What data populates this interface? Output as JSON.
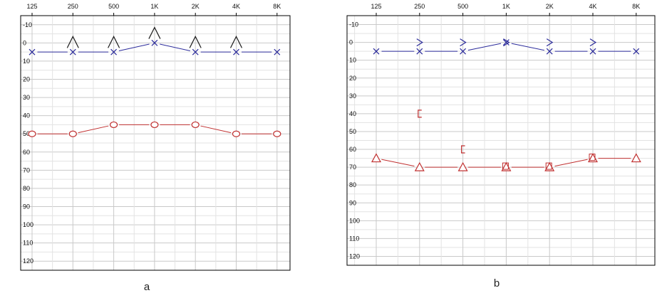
{
  "captions": {
    "a": "a",
    "b": "b"
  },
  "colors": {
    "air": "#2b2b9b",
    "bone_left": "#1a1a1a",
    "bone_right": "#c03030",
    "line_right": "#c03030",
    "grid_minor": "#e3e3e3",
    "grid_major": "#c9c9c9",
    "frame": "#000000"
  },
  "chart_data": [
    {
      "type": "line",
      "panel": "a",
      "title": "",
      "xlabel": "",
      "ylabel": "",
      "x_tick_labels": [
        "125",
        "250",
        "500",
        "1K",
        "2K",
        "4K",
        "8K"
      ],
      "y_tick_labels": [
        "-10",
        "0",
        "10",
        "20",
        "30",
        "40",
        "50",
        "60",
        "70",
        "80",
        "90",
        "100",
        "110",
        "120"
      ],
      "ylim": [
        -15,
        125
      ],
      "y_inverted": true,
      "grid": true,
      "series": [
        {
          "symbol": "x",
          "color": "#2b2b9b",
          "connected": true,
          "values": [
            5,
            5,
            5,
            0,
            5,
            5,
            5
          ]
        },
        {
          "symbol": "o",
          "color": "#c03030",
          "connected": true,
          "values": [
            50,
            50,
            45,
            45,
            45,
            50,
            50
          ]
        },
        {
          "symbol": "^",
          "color": "#1a1a1a",
          "connected": false,
          "values": [
            null,
            0,
            0,
            -5,
            0,
            0,
            null
          ]
        }
      ]
    },
    {
      "type": "line",
      "panel": "b",
      "title": "",
      "xlabel": "",
      "ylabel": "",
      "x_tick_labels": [
        "125",
        "250",
        "500",
        "1K",
        "2K",
        "4K",
        "8K"
      ],
      "y_tick_labels": [
        "-10",
        "0",
        "10",
        "20",
        "30",
        "40",
        "50",
        "60",
        "70",
        "80",
        "90",
        "100",
        "110",
        "120"
      ],
      "ylim": [
        -15,
        125
      ],
      "y_inverted": true,
      "grid": true,
      "series": [
        {
          "symbol": "x",
          "color": "#2b2b9b",
          "connected": true,
          "values": [
            5,
            5,
            5,
            0,
            5,
            5,
            5
          ]
        },
        {
          "symbol": ">",
          "color": "#2b2b9b",
          "connected": false,
          "values": [
            null,
            0,
            0,
            0,
            0,
            0,
            null
          ]
        },
        {
          "symbol": "triangle",
          "color": "#c03030",
          "connected": true,
          "values": [
            65,
            70,
            70,
            70,
            70,
            65,
            65
          ]
        },
        {
          "symbol": "square",
          "color": "#c03030",
          "connected": false,
          "values": [
            null,
            null,
            null,
            70,
            70,
            65,
            null
          ]
        },
        {
          "symbol": "[",
          "color": "#c03030",
          "connected": false,
          "values": [
            null,
            40,
            60,
            null,
            null,
            null,
            null
          ]
        }
      ]
    }
  ]
}
